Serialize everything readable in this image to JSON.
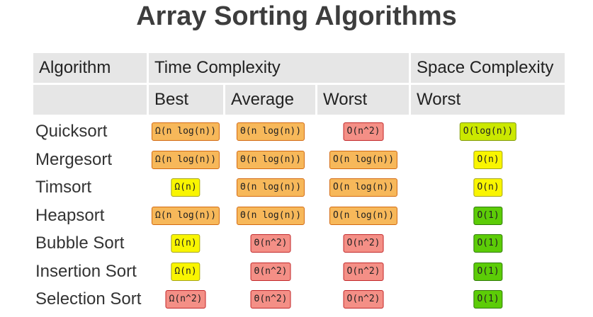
{
  "title": "Array Sorting Algorithms",
  "header": {
    "algorithm": "Algorithm",
    "time_complexity": "Time Complexity",
    "space_complexity": "Space Complexity",
    "best": "Best",
    "average": "Average",
    "worst": "Worst",
    "space_worst": "Worst"
  },
  "colors": {
    "orange": "#f7b85a",
    "red": "#f48f86",
    "yellow": "#f9f500",
    "lime": "#cbe800",
    "green": "#5ccc07",
    "header_bg": "#e6e6e6"
  },
  "rows": [
    {
      "name": "Quicksort",
      "best": {
        "text": "Ω(n log(n))",
        "color": "orange"
      },
      "average": {
        "text": "Θ(n log(n))",
        "color": "orange"
      },
      "worst": {
        "text": "O(n^2)",
        "color": "red"
      },
      "space": {
        "text": "O(log(n))",
        "color": "lime"
      }
    },
    {
      "name": "Mergesort",
      "best": {
        "text": "Ω(n log(n))",
        "color": "orange"
      },
      "average": {
        "text": "Θ(n log(n))",
        "color": "orange"
      },
      "worst": {
        "text": "O(n log(n))",
        "color": "orange"
      },
      "space": {
        "text": "O(n)",
        "color": "yellow"
      }
    },
    {
      "name": "Timsort",
      "best": {
        "text": "Ω(n)",
        "color": "yellow"
      },
      "average": {
        "text": "Θ(n log(n))",
        "color": "orange"
      },
      "worst": {
        "text": "O(n log(n))",
        "color": "orange"
      },
      "space": {
        "text": "O(n)",
        "color": "yellow"
      }
    },
    {
      "name": "Heapsort",
      "best": {
        "text": "Ω(n log(n))",
        "color": "orange"
      },
      "average": {
        "text": "Θ(n log(n))",
        "color": "orange"
      },
      "worst": {
        "text": "O(n log(n))",
        "color": "orange"
      },
      "space": {
        "text": "O(1)",
        "color": "green"
      }
    },
    {
      "name": "Bubble Sort",
      "best": {
        "text": "Ω(n)",
        "color": "yellow"
      },
      "average": {
        "text": "Θ(n^2)",
        "color": "red"
      },
      "worst": {
        "text": "O(n^2)",
        "color": "red"
      },
      "space": {
        "text": "O(1)",
        "color": "green"
      }
    },
    {
      "name": "Insertion Sort",
      "best": {
        "text": "Ω(n)",
        "color": "yellow"
      },
      "average": {
        "text": "Θ(n^2)",
        "color": "red"
      },
      "worst": {
        "text": "O(n^2)",
        "color": "red"
      },
      "space": {
        "text": "O(1)",
        "color": "green"
      }
    },
    {
      "name": "Selection Sort",
      "best": {
        "text": "Ω(n^2)",
        "color": "red"
      },
      "average": {
        "text": "Θ(n^2)",
        "color": "red"
      },
      "worst": {
        "text": "O(n^2)",
        "color": "red"
      },
      "space": {
        "text": "O(1)",
        "color": "green"
      }
    }
  ]
}
